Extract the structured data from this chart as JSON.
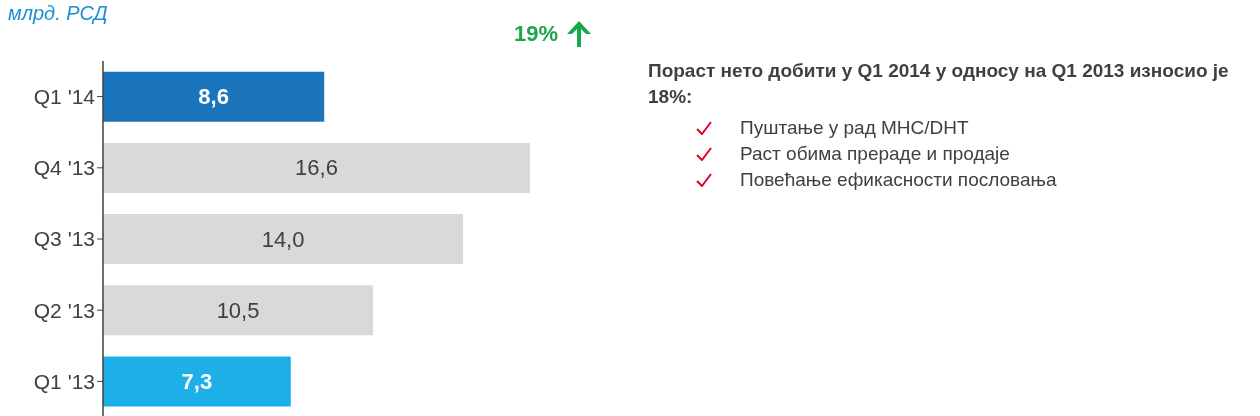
{
  "chart_data": {
    "type": "bar",
    "orientation": "horizontal",
    "title": "млрд. РСД",
    "categories": [
      "Q1 '14",
      "Q4 '13",
      "Q3 '13",
      "Q2 '13",
      "Q1 '13"
    ],
    "values": [
      8.6,
      16.6,
      14.0,
      10.5,
      7.3
    ],
    "colors": [
      "#1a75bc",
      "#d9d9d9",
      "#d9d9d9",
      "#d9d9d9",
      "#1cafe8"
    ],
    "value_labels": [
      "8,6",
      "16,6",
      "14,0",
      "10,5",
      "7,3"
    ],
    "annotations": [
      "19%",
      "Пораст нето добити у Q1 2014 у односу на Q1 2013 износио је 18%:",
      "Пуштање у рад MHC/DHT",
      "Раст обима прераде и продаје",
      "Повећање ефикасности пословања"
    ]
  }
}
